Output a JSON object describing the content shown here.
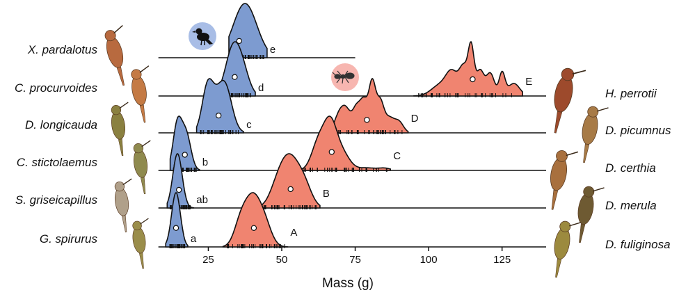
{
  "chart_data": {
    "type": "ridgeline",
    "xlabel": "Mass (g)",
    "xlim": [
      5,
      140
    ],
    "xticks": [
      25,
      50,
      75,
      100,
      125
    ],
    "guild_icons": [
      "bird-icon",
      "ant-icon"
    ],
    "colors": {
      "blue": "#7d9bd0",
      "red": "#f08470",
      "blue_badge": "#a8bde6",
      "red_badge": "#f7b6b0"
    },
    "rows": [
      {
        "blue": {
          "species": "X. pardalotus",
          "group": "e",
          "mean": 35.5,
          "peaks": [
            [
              37.5,
              4.0,
              1.0
            ]
          ],
          "range": [
            32,
            45
          ],
          "baseline": [
            8,
            75
          ]
        },
        "red": null
      },
      {
        "blue": {
          "species": "C. procurvoides",
          "group": "d",
          "mean": 34,
          "peaks": [
            [
              33.5,
              2.6,
              1.0
            ],
            [
              37,
              2.2,
              0.35
            ]
          ],
          "range": [
            29,
            41
          ]
        },
        "red": {
          "species": "H. perrotii",
          "group": "E",
          "mean": 115,
          "peaks": [
            [
              104,
              3.0,
              0.22
            ],
            [
              108,
              2.0,
              0.42
            ],
            [
              112,
              1.5,
              0.55
            ],
            [
              114.5,
              1.0,
              0.9
            ],
            [
              117.5,
              1.3,
              0.5
            ],
            [
              121,
              1.4,
              0.45
            ],
            [
              125,
              1.0,
              0.45
            ],
            [
              129,
              2.0,
              0.25
            ]
          ],
          "range": [
            95,
            132
          ]
        }
      },
      {
        "blue": {
          "species": "D. longicauda",
          "group": "c",
          "mean": 28.5,
          "peaks": [
            [
              24.5,
              1.8,
              0.75
            ],
            [
              30.5,
              2.4,
              1.0
            ],
            [
              26.5,
              2.0,
              0.4
            ]
          ],
          "range": [
            21,
            37
          ]
        },
        "red": {
          "species": "D. picumnus",
          "group": "D",
          "mean": 79,
          "peaks": [
            [
              69.5,
              1.6,
              0.35
            ],
            [
              72,
              1.5,
              0.4
            ],
            [
              75.5,
              1.4,
              0.5
            ],
            [
              78,
              1.2,
              0.55
            ],
            [
              80.8,
              1.2,
              1.0
            ],
            [
              83.5,
              1.2,
              0.55
            ],
            [
              86.5,
              1.8,
              0.3
            ],
            [
              90,
              1.5,
              0.2
            ]
          ],
          "range": [
            66,
            93
          ]
        }
      },
      {
        "blue": {
          "species": "C. stictolaemus",
          "group": "b",
          "mean": 17,
          "peaks": [
            [
              14.5,
              1.5,
              1.0
            ],
            [
              17.5,
              1.6,
              0.75
            ]
          ],
          "range": [
            12,
            22
          ]
        },
        "red": {
          "species": "D. certhia",
          "group": "C",
          "mean": 67,
          "peaks": [
            [
              62.5,
              2.3,
              0.65
            ],
            [
              66.5,
              2.2,
              1.0
            ],
            [
              70.5,
              2.6,
              0.4
            ],
            [
              79,
              3.0,
              0.06
            ],
            [
              85,
              2.0,
              0.05
            ]
          ],
          "range": [
            55,
            87
          ]
        }
      },
      {
        "blue": {
          "species": "S. griseicapillus",
          "group": "ab",
          "mean": 15,
          "peaks": [
            [
              14.5,
              1.6,
              1.0
            ]
          ],
          "range": [
            11,
            20
          ]
        },
        "red": {
          "species": "D. merula",
          "group": "B",
          "mean": 53,
          "peaks": [
            [
              49,
              2.8,
              0.65
            ],
            [
              53,
              2.8,
              1.0
            ],
            [
              57.5,
              2.6,
              0.6
            ]
          ],
          "range": [
            42,
            63
          ]
        }
      },
      {
        "blue": {
          "species": "G. spirurus",
          "group": "a",
          "mean": 14,
          "peaks": [
            [
              14,
              1.5,
              1.0
            ]
          ],
          "range": [
            10.5,
            18
          ]
        },
        "red": {
          "species": "D. fuliginosa",
          "group": "A",
          "mean": 40.5,
          "peaks": [
            [
              36,
              2.2,
              0.55
            ],
            [
              40,
              2.5,
              1.0
            ],
            [
              44,
              2.4,
              0.55
            ]
          ],
          "range": [
            30,
            52
          ]
        }
      }
    ]
  }
}
